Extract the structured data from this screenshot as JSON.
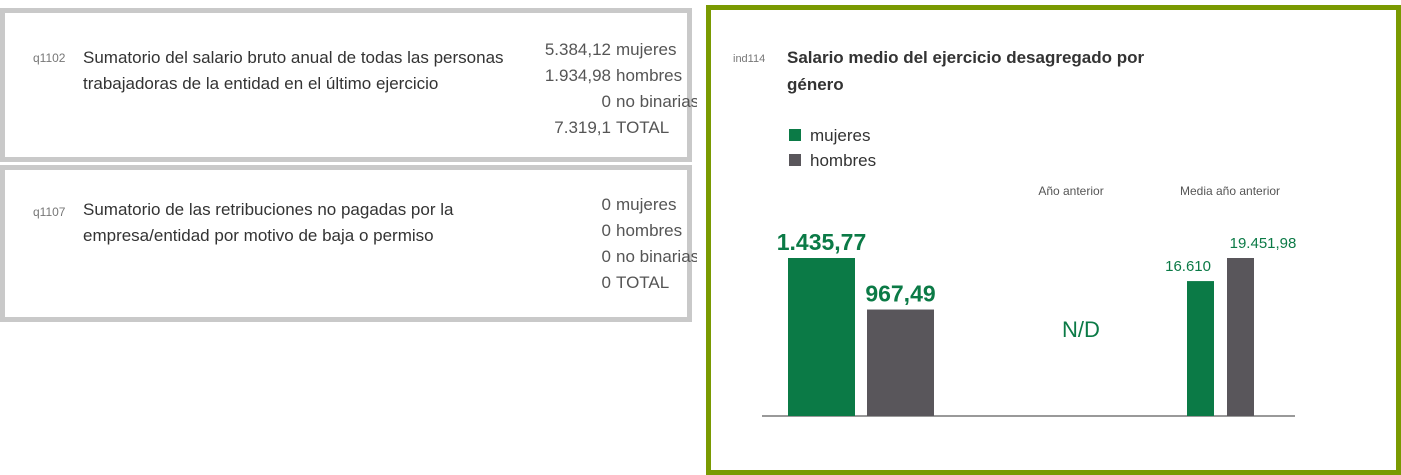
{
  "cards": [
    {
      "code": "q1102",
      "text": "Sumatorio del salario bruto anual de todas las personas trabajadoras de la entidad en el último ejercicio",
      "rows": [
        {
          "value": "5.384,12",
          "label": "mujeres"
        },
        {
          "value": "1.934,98",
          "label": "hombres"
        },
        {
          "value": "0",
          "label": "no binarias"
        },
        {
          "value": "7.319,1",
          "label": "TOTAL"
        }
      ]
    },
    {
      "code": "q1107",
      "text": "Sumatorio de las retribuciones no pagadas por la empresa/entidad por motivo de baja o permiso",
      "rows": [
        {
          "value": "0",
          "label": "mujeres"
        },
        {
          "value": "0",
          "label": "hombres"
        },
        {
          "value": "0",
          "label": "no binarias"
        },
        {
          "value": "0",
          "label": "TOTAL"
        }
      ]
    }
  ],
  "chart": {
    "type": "bar",
    "code": "ind114",
    "title": "Salario medio del ejercicio desagregado por género",
    "series": [
      {
        "name": "mujeres",
        "color": "#0b7a46"
      },
      {
        "name": "hombres",
        "color": "#59565b"
      }
    ],
    "groups": [
      {
        "values": [
          1435.77,
          967.49
        ],
        "value_labels": [
          "1.435,77",
          "967,49"
        ]
      },
      {
        "label": "Año anterior",
        "note": "N/D"
      },
      {
        "label": "Media año anterior",
        "values": [
          16610,
          19451.98
        ],
        "value_labels": [
          "16.610",
          "19.451,98"
        ]
      }
    ]
  }
}
